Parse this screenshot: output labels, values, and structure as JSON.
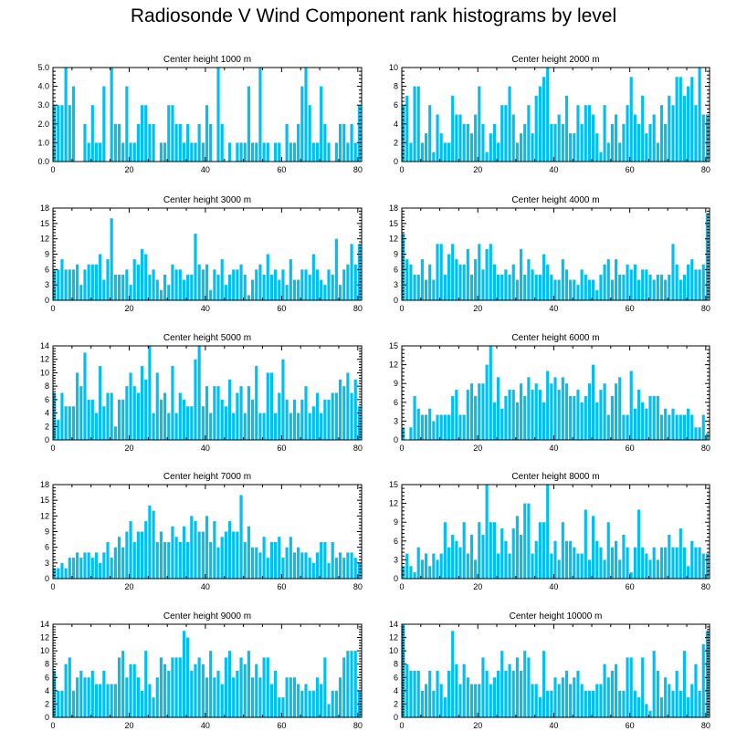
{
  "title": "Radiosonde V Wind Component rank histograms by level",
  "colors": {
    "bar": "#00BFF3",
    "axis": "#000000"
  },
  "chart_data": [
    {
      "type": "bar",
      "title": "Center height 1000 m",
      "xlim": [
        0,
        81
      ],
      "ylim": [
        0,
        5
      ],
      "xticks": [
        0,
        20,
        40,
        60,
        80
      ],
      "yticks": [
        "0.0",
        "1.0",
        "2.0",
        "3.0",
        "4.0",
        "5.0"
      ],
      "values": [
        3,
        3,
        3,
        5,
        3,
        4,
        0,
        0,
        2,
        1,
        3,
        1,
        1,
        4,
        0,
        5,
        2,
        2,
        1,
        4,
        1,
        1,
        2,
        3,
        3,
        2,
        2,
        0,
        1,
        1,
        3,
        3,
        2,
        2,
        1,
        2,
        1,
        1,
        2,
        1,
        3,
        2,
        0,
        5,
        2,
        0,
        1,
        0,
        1,
        1,
        1,
        4,
        1,
        1,
        5,
        1,
        1,
        0,
        1,
        1,
        0,
        2,
        1,
        1,
        2,
        4,
        5,
        3,
        1,
        1,
        4,
        2,
        1,
        0,
        1,
        2,
        2,
        1,
        2,
        1,
        3
      ]
    },
    {
      "type": "bar",
      "title": "Center height 2000 m",
      "xlim": [
        0,
        81
      ],
      "ylim": [
        0,
        10
      ],
      "xticks": [
        0,
        20,
        40,
        60,
        80
      ],
      "yticks": [
        "0",
        "2",
        "4",
        "6",
        "8",
        "10"
      ],
      "values": [
        6,
        7,
        2,
        8,
        8,
        2,
        3,
        6,
        1,
        5,
        3,
        2,
        2,
        7,
        5,
        5,
        4,
        4,
        3,
        5,
        8,
        4,
        1,
        3,
        4,
        2,
        6,
        6,
        8,
        5,
        2,
        3,
        4,
        6,
        3,
        7,
        8,
        9,
        10,
        4,
        4,
        5,
        4,
        7,
        3,
        3,
        6,
        4,
        6,
        6,
        5,
        3,
        1,
        6,
        2,
        4,
        5,
        2,
        4,
        6,
        9,
        5,
        4,
        7,
        3,
        4,
        5,
        2,
        6,
        4,
        7,
        6,
        9,
        9,
        7,
        8,
        9,
        6,
        10,
        5,
        5
      ]
    },
    {
      "type": "bar",
      "title": "Center height 3000 m",
      "xlim": [
        0,
        81
      ],
      "ylim": [
        0,
        18
      ],
      "xticks": [
        0,
        20,
        40,
        60,
        80
      ],
      "yticks": [
        "0",
        "3",
        "6",
        "9",
        "12",
        "15",
        "18"
      ],
      "values": [
        6,
        6,
        8,
        6,
        6,
        6,
        7,
        3,
        6,
        7,
        7,
        7,
        9,
        4,
        8,
        16,
        5,
        5,
        5,
        6,
        3,
        8,
        7,
        10,
        9,
        5,
        6,
        4,
        2,
        5,
        3,
        7,
        6,
        6,
        4,
        5,
        5,
        13,
        7,
        6,
        7,
        2,
        6,
        5,
        8,
        3,
        5,
        6,
        6,
        7,
        5,
        1,
        4,
        6,
        7,
        5,
        9,
        5,
        6,
        4,
        6,
        3,
        8,
        4,
        4,
        6,
        6,
        5,
        9,
        6,
        4,
        3,
        6,
        5,
        12,
        3,
        6,
        7,
        11,
        7,
        11
      ]
    },
    {
      "type": "bar",
      "title": "Center height 4000 m",
      "xlim": [
        0,
        81
      ],
      "ylim": [
        0,
        18
      ],
      "xticks": [
        0,
        20,
        40,
        60,
        80
      ],
      "yticks": [
        "0",
        "3",
        "6",
        "9",
        "12",
        "15",
        "18"
      ],
      "values": [
        13,
        8,
        7,
        5,
        5,
        8,
        4,
        7,
        4,
        11,
        11,
        5,
        9,
        11,
        8,
        7,
        7,
        10,
        5,
        8,
        11,
        6,
        10,
        11,
        7,
        5,
        5,
        6,
        5,
        7,
        4,
        10,
        5,
        8,
        6,
        5,
        5,
        9,
        7,
        5,
        4,
        4,
        8,
        6,
        4,
        4,
        3,
        6,
        5,
        4,
        4,
        2,
        5,
        7,
        8,
        4,
        8,
        5,
        5,
        7,
        6,
        7,
        4,
        6,
        6,
        5,
        4,
        5,
        5,
        4,
        5,
        11,
        7,
        4,
        5,
        7,
        8,
        6,
        6,
        7,
        17
      ]
    },
    {
      "type": "bar",
      "title": "Center height 5000 m",
      "xlim": [
        0,
        81
      ],
      "ylim": [
        0,
        14
      ],
      "xticks": [
        0,
        20,
        40,
        60,
        80
      ],
      "yticks": [
        "0",
        "2",
        "4",
        "6",
        "8",
        "10",
        "12",
        "14"
      ],
      "values": [
        7,
        3,
        7,
        5,
        5,
        5,
        10,
        8,
        13,
        6,
        6,
        4,
        11,
        5,
        7,
        7,
        2,
        6,
        6,
        8,
        10,
        8,
        7,
        11,
        9,
        14,
        4,
        10,
        6,
        7,
        4,
        11,
        4,
        7,
        6,
        5,
        5,
        12,
        14,
        5,
        8,
        4,
        8,
        8,
        6,
        5,
        9,
        4,
        7,
        8,
        4,
        8,
        6,
        11,
        4,
        4,
        10,
        10,
        4,
        7,
        12,
        6,
        4,
        6,
        4,
        6,
        8,
        4,
        5,
        7,
        4,
        6,
        6,
        7,
        7,
        9,
        8,
        10,
        7,
        9,
        5
      ]
    },
    {
      "type": "bar",
      "title": "Center height 6000 m",
      "xlim": [
        0,
        81
      ],
      "ylim": [
        0,
        15
      ],
      "xticks": [
        0,
        20,
        40,
        60,
        80
      ],
      "yticks": [
        "0",
        "3",
        "6",
        "9",
        "12",
        "15"
      ],
      "values": [
        2,
        0,
        2,
        7,
        5,
        4,
        4,
        5,
        3,
        4,
        4,
        4,
        4,
        7,
        8,
        4,
        4,
        8,
        9,
        7,
        9,
        9,
        12,
        15,
        6,
        10,
        5,
        7,
        8,
        8,
        6,
        9,
        7,
        10,
        8,
        9,
        8,
        6,
        11,
        9,
        10,
        8,
        10,
        9,
        7,
        7,
        8,
        6,
        7,
        9,
        12,
        6,
        8,
        9,
        4,
        7,
        9,
        10,
        4,
        4,
        11,
        5,
        8,
        6,
        5,
        7,
        7,
        7,
        4,
        5,
        4,
        5,
        4,
        4,
        4,
        5,
        4,
        2,
        2,
        4,
        1
      ]
    },
    {
      "type": "bar",
      "title": "Center height 7000 m",
      "xlim": [
        0,
        81
      ],
      "ylim": [
        0,
        18
      ],
      "xticks": [
        0,
        20,
        40,
        60,
        80
      ],
      "yticks": [
        "0",
        "3",
        "6",
        "9",
        "12",
        "15",
        "18"
      ],
      "values": [
        2,
        2,
        3,
        2,
        4,
        4,
        5,
        4,
        5,
        5,
        4,
        5,
        3,
        5,
        7,
        4,
        6,
        8,
        6,
        9,
        11,
        7,
        9,
        9,
        11,
        14,
        13,
        7,
        9,
        7,
        7,
        10,
        8,
        7,
        10,
        7,
        12,
        11,
        9,
        9,
        12,
        7,
        11,
        6,
        8,
        9,
        11,
        9,
        9,
        16,
        7,
        10,
        6,
        6,
        5,
        8,
        4,
        7,
        7,
        8,
        4,
        6,
        8,
        5,
        6,
        5,
        5,
        4,
        3,
        5,
        7,
        7,
        3,
        7,
        4,
        5,
        4,
        5,
        5,
        4,
        3
      ]
    },
    {
      "type": "bar",
      "title": "Center height 8000 m",
      "xlim": [
        0,
        81
      ],
      "ylim": [
        0,
        15
      ],
      "xticks": [
        0,
        20,
        40,
        60,
        80
      ],
      "yticks": [
        "0",
        "3",
        "6",
        "9",
        "12",
        "15"
      ],
      "values": [
        2,
        4,
        2,
        1,
        5,
        3,
        4,
        2,
        4,
        3,
        4,
        9,
        5,
        7,
        6,
        5,
        9,
        4,
        7,
        3,
        9,
        7,
        15,
        9,
        9,
        4,
        8,
        6,
        4,
        8,
        10,
        7,
        12,
        12,
        4,
        6,
        9,
        9,
        15,
        4,
        6,
        3,
        9,
        6,
        6,
        5,
        4,
        4,
        11,
        3,
        10,
        6,
        5,
        3,
        9,
        5,
        6,
        3,
        7,
        5,
        1,
        5,
        11,
        5,
        4,
        3,
        5,
        3,
        5,
        5,
        7,
        5,
        5,
        8,
        5,
        2,
        6,
        5,
        5,
        4,
        4
      ]
    },
    {
      "type": "bar",
      "title": "Center height 9000 m",
      "xlim": [
        0,
        81
      ],
      "ylim": [
        0,
        14
      ],
      "xticks": [
        0,
        20,
        40,
        60,
        80
      ],
      "yticks": [
        "0",
        "2",
        "4",
        "6",
        "8",
        "10",
        "12",
        "14"
      ],
      "values": [
        7,
        4,
        4,
        8,
        9,
        4,
        6,
        7,
        6,
        6,
        7,
        5,
        5,
        7,
        5,
        5,
        5,
        9,
        10,
        6,
        8,
        8,
        6,
        4,
        10,
        5,
        3,
        6,
        9,
        8,
        7,
        9,
        9,
        9,
        13,
        12,
        7,
        8,
        9,
        8,
        6,
        10,
        6,
        7,
        5,
        9,
        10,
        6,
        7,
        9,
        8,
        10,
        6,
        8,
        6,
        9,
        9,
        5,
        7,
        3,
        3,
        6,
        6,
        6,
        5,
        4,
        5,
        4,
        4,
        6,
        5,
        9,
        2,
        4,
        4,
        6,
        9,
        10,
        10,
        10,
        4
      ]
    },
    {
      "type": "bar",
      "title": "Center height 10000 m",
      "xlim": [
        0,
        81
      ],
      "ylim": [
        0,
        14
      ],
      "xticks": [
        0,
        20,
        40,
        60,
        80
      ],
      "yticks": [
        "0",
        "2",
        "4",
        "6",
        "8",
        "10",
        "12",
        "14"
      ],
      "values": [
        14,
        8,
        7,
        7,
        7,
        4,
        5,
        7,
        4,
        7,
        5,
        3,
        7,
        13,
        8,
        5,
        8,
        6,
        5,
        5,
        5,
        9,
        7,
        5,
        6,
        7,
        10,
        7,
        8,
        7,
        9,
        7,
        10,
        9,
        5,
        5,
        3,
        10,
        4,
        4,
        6,
        5,
        6,
        7,
        5,
        6,
        7,
        5,
        4,
        4,
        4,
        5,
        5,
        8,
        6,
        7,
        8,
        4,
        4,
        9,
        9,
        4,
        3,
        9,
        2,
        1,
        10,
        7,
        3,
        6,
        5,
        4,
        7,
        4,
        10,
        3,
        5,
        8,
        4,
        11,
        13
      ]
    }
  ]
}
